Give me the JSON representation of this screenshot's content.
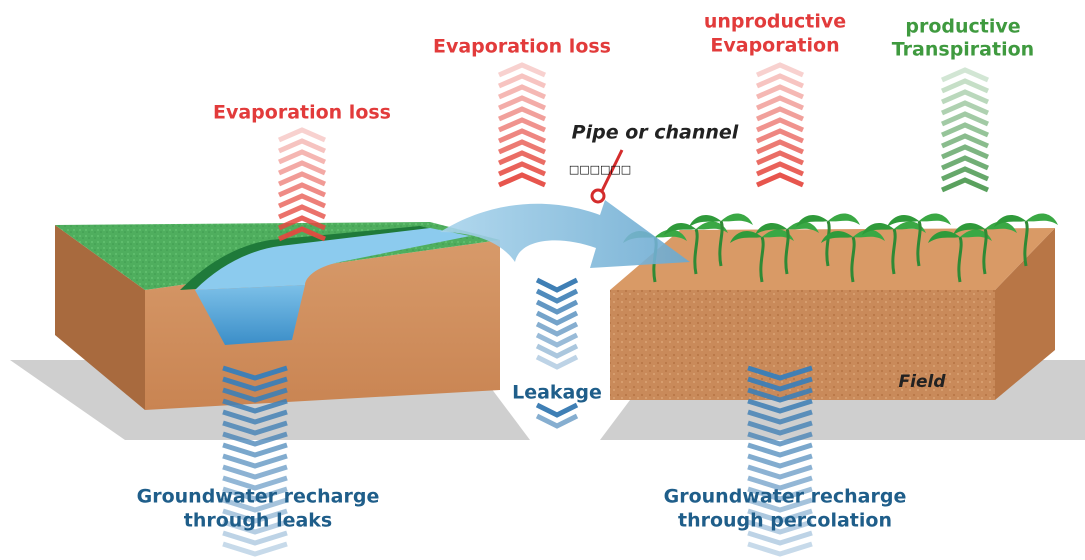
{
  "labels": {
    "evaporation_left": {
      "lines": [
        "Evaporation loss"
      ]
    },
    "evaporation_middle": {
      "lines": [
        "Evaporation loss"
      ]
    },
    "unproductive": {
      "lines": [
        "unproductive",
        "Evaporation"
      ]
    },
    "productive": {
      "lines": [
        "productive",
        "Transpiration"
      ]
    },
    "pipe": {
      "lines": [
        "Pipe or channel"
      ]
    },
    "pipe_note": {
      "lines": [
        "□□□□□□"
      ]
    },
    "leakage": {
      "lines": [
        "Leakage"
      ]
    },
    "field": {
      "lines": [
        "Field"
      ]
    },
    "recharge_leaks": {
      "lines": [
        "Groundwater recharge",
        "through leaks"
      ]
    },
    "recharge_percolation": {
      "lines": [
        "Groundwater recharge",
        "through percolation"
      ]
    }
  }
}
